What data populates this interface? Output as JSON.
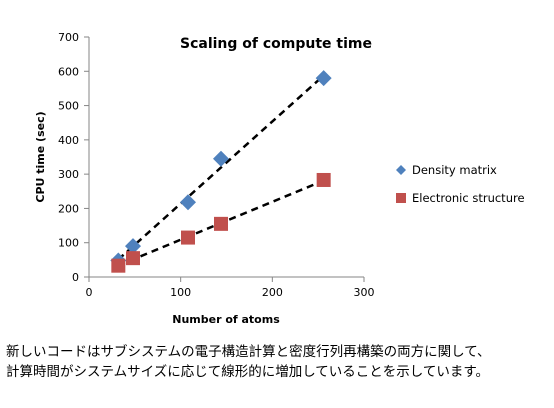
{
  "chart_data": {
    "type": "scatter",
    "title": "Scaling of compute time",
    "xlabel": "Number of atoms",
    "ylabel": "CPU time (sec)",
    "xlim": [
      0,
      300
    ],
    "ylim": [
      0,
      700
    ],
    "x_ticks": [
      0,
      100,
      200,
      300
    ],
    "y_ticks": [
      0,
      100,
      200,
      300,
      400,
      500,
      600,
      700
    ],
    "grid": false,
    "legend_position": "right",
    "series": [
      {
        "name": "Density matrix",
        "marker": "diamond",
        "color": "#4F81BD",
        "trendline": "linear",
        "x": [
          32,
          48,
          108,
          144,
          256
        ],
        "y": [
          48,
          90,
          218,
          345,
          580
        ]
      },
      {
        "name": "Electronic structure",
        "marker": "square",
        "color": "#C0504D",
        "trendline": "linear",
        "x": [
          32,
          48,
          108,
          144,
          256
        ],
        "y": [
          33,
          55,
          115,
          155,
          283
        ]
      }
    ]
  },
  "caption": {
    "line1": "新しいコードはサブシステムの電子構造計算と密度行列再構築の両方に関して、",
    "line2": "計算時間がシステムサイズに応じて線形的に増加していることを示しています。"
  }
}
